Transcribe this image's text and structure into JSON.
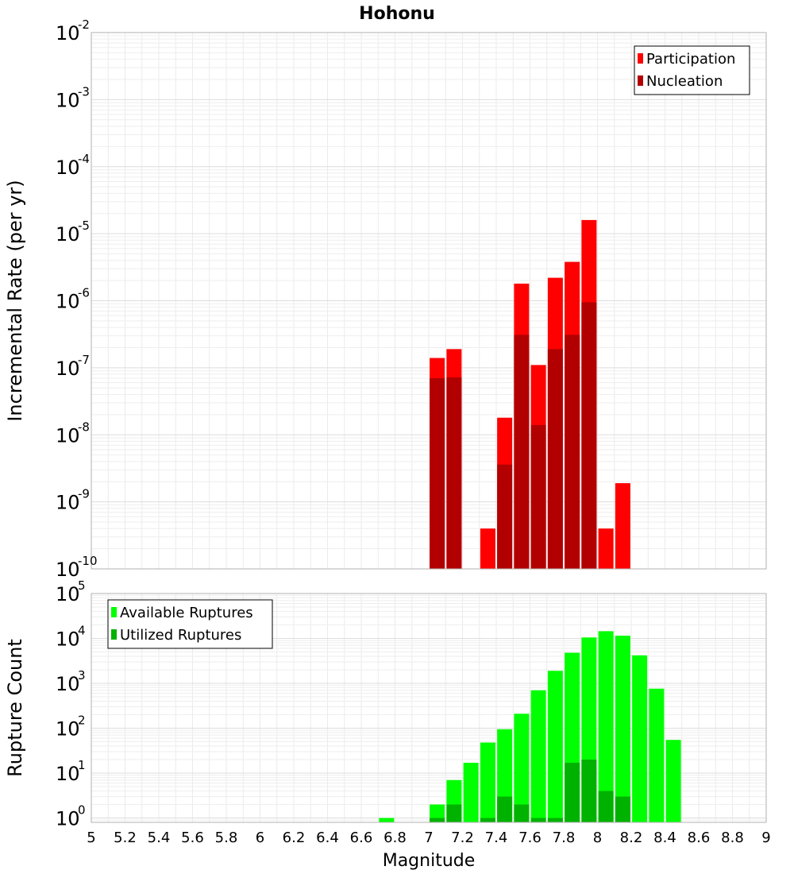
{
  "chart_data": [
    {
      "type": "bar",
      "title": "Hohonu",
      "xlabel": "",
      "ylabel": "Incremental Rate (per yr)",
      "y_scale": "log",
      "ylim": [
        1e-10,
        0.01
      ],
      "xlim": [
        5,
        9
      ],
      "legend_position": "top-right",
      "overlay": true,
      "series": [
        {
          "name": "Participation",
          "color": "#ff0000",
          "x": [
            7.05,
            7.15,
            7.35,
            7.45,
            7.55,
            7.65,
            7.75,
            7.85,
            7.95,
            8.05,
            8.15
          ],
          "values": [
            1.4e-07,
            1.9e-07,
            4e-10,
            1.8e-08,
            1.8e-06,
            1.1e-07,
            2.2e-06,
            3.8e-06,
            1.6e-05,
            4e-10,
            1.9e-09
          ]
        },
        {
          "name": "Nucleation",
          "color": "#b20000",
          "x": [
            7.05,
            7.15,
            7.45,
            7.55,
            7.65,
            7.75,
            7.85,
            7.95
          ],
          "values": [
            7e-08,
            7.2e-08,
            3.6e-09,
            3.1e-07,
            1.4e-08,
            1.9e-07,
            3.1e-07,
            9.5e-07
          ]
        }
      ]
    },
    {
      "type": "bar",
      "title": "",
      "xlabel": "Magnitude",
      "ylabel": "Rupture Count",
      "y_scale": "log",
      "ylim": [
        0.8,
        100000.0
      ],
      "xlim": [
        5,
        9
      ],
      "x_ticks": [
        "5",
        "5.2",
        "5.4",
        "5.6",
        "5.8",
        "6",
        "6.2",
        "6.4",
        "6.6",
        "6.8",
        "7",
        "7.2",
        "7.4",
        "7.6",
        "7.8",
        "8",
        "8.2",
        "8.4",
        "8.6",
        "8.8",
        "9"
      ],
      "legend_position": "top-left",
      "overlay": true,
      "series": [
        {
          "name": "Available Ruptures",
          "color": "#00ff00",
          "x": [
            6.75,
            7.05,
            7.15,
            7.25,
            7.35,
            7.45,
            7.55,
            7.65,
            7.75,
            7.85,
            7.95,
            8.05,
            8.15,
            8.25,
            8.35,
            8.45
          ],
          "values": [
            1,
            2,
            7,
            17,
            48,
            95,
            210,
            700,
            1900,
            4800,
            10500,
            14500,
            11500,
            4200,
            760,
            55
          ]
        },
        {
          "name": "Utilized Ruptures",
          "color": "#00b200",
          "x": [
            7.05,
            7.15,
            7.35,
            7.45,
            7.55,
            7.65,
            7.75,
            7.85,
            7.95,
            8.05,
            8.15
          ],
          "values": [
            1,
            2,
            1,
            3,
            2,
            1,
            1,
            17,
            20,
            4,
            3
          ]
        }
      ]
    }
  ]
}
